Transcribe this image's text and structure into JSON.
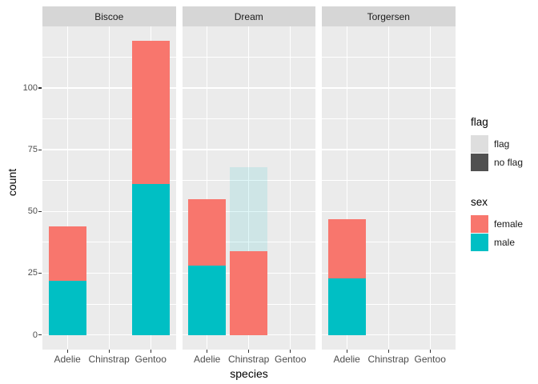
{
  "figure": {
    "xlabel": "species",
    "ylabel": "count"
  },
  "chart_data": {
    "type": "bar",
    "stacked": true,
    "facet_variable_values": [
      "Biscoe",
      "Dream",
      "Torgersen"
    ],
    "categories": [
      "Adelie",
      "Chinstrap",
      "Gentoo"
    ],
    "y_ticks": [
      0,
      25,
      50,
      75,
      100
    ],
    "ylim": [
      -5.95,
      124.95
    ],
    "grid": true,
    "facets": [
      {
        "label": "Biscoe",
        "bars": [
          {
            "species": "Adelie",
            "segments": [
              {
                "sex": "male",
                "flag": "no flag",
                "value": 22
              },
              {
                "sex": "female",
                "flag": "no flag",
                "value": 22
              }
            ]
          },
          {
            "species": "Chinstrap",
            "segments": []
          },
          {
            "species": "Gentoo",
            "segments": [
              {
                "sex": "male",
                "flag": "no flag",
                "value": 61
              },
              {
                "sex": "female",
                "flag": "no flag",
                "value": 58
              }
            ]
          }
        ]
      },
      {
        "label": "Dream",
        "bars": [
          {
            "species": "Adelie",
            "segments": [
              {
                "sex": "male",
                "flag": "no flag",
                "value": 28
              },
              {
                "sex": "female",
                "flag": "no flag",
                "value": 27
              }
            ]
          },
          {
            "species": "Chinstrap",
            "segments": [
              {
                "sex": "female",
                "flag": "no flag",
                "value": 34
              },
              {
                "sex": "male",
                "flag": "flag",
                "value": 34
              }
            ]
          },
          {
            "species": "Gentoo",
            "segments": []
          }
        ]
      },
      {
        "label": "Torgersen",
        "bars": [
          {
            "species": "Adelie",
            "segments": [
              {
                "sex": "male",
                "flag": "no flag",
                "value": 23
              },
              {
                "sex": "female",
                "flag": "no flag",
                "value": 24
              }
            ]
          },
          {
            "species": "Chinstrap",
            "segments": []
          },
          {
            "species": "Gentoo",
            "segments": []
          }
        ]
      }
    ]
  },
  "legend": {
    "flag": {
      "title": "flag",
      "items": [
        {
          "label": "flag",
          "color": "#DEDEDE"
        },
        {
          "label": "no flag",
          "color": "#505050"
        }
      ]
    },
    "sex": {
      "title": "sex",
      "items": [
        {
          "label": "female",
          "color": "#F8766D"
        },
        {
          "label": "male",
          "color": "#00BFC4"
        }
      ]
    }
  },
  "colors": {
    "sex": {
      "female": "#F8766D",
      "male": "#00BFC4"
    },
    "flag_alpha": 0.12,
    "panel_background": "#EBEBEB",
    "strip_background": "#D6D6D6",
    "gridline": "#FFFFFF"
  }
}
